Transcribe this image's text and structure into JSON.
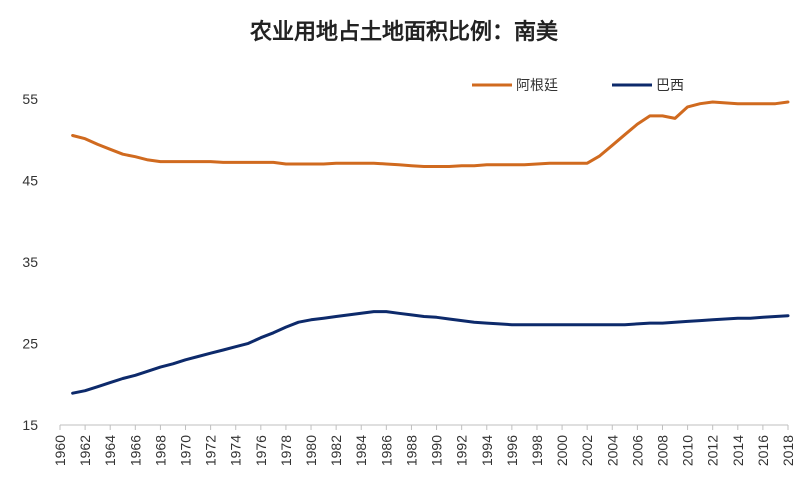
{
  "chart_data": {
    "type": "line",
    "title": "农业用地占土地面积比例：南美",
    "xlabel": "",
    "ylabel": "",
    "x": [
      1961,
      1962,
      1963,
      1964,
      1965,
      1966,
      1967,
      1968,
      1969,
      1970,
      1971,
      1972,
      1973,
      1974,
      1975,
      1976,
      1977,
      1978,
      1979,
      1980,
      1981,
      1982,
      1983,
      1984,
      1985,
      1986,
      1987,
      1988,
      1989,
      1990,
      1991,
      1992,
      1993,
      1994,
      1995,
      1996,
      1997,
      1998,
      1999,
      2000,
      2001,
      2002,
      2003,
      2004,
      2005,
      2006,
      2007,
      2008,
      2009,
      2010,
      2011,
      2012,
      2013,
      2014,
      2015,
      2016,
      2017,
      2018
    ],
    "x_tick_labels": [
      "1960",
      "1962",
      "1964",
      "1966",
      "1968",
      "1970",
      "1972",
      "1974",
      "1976",
      "1978",
      "1980",
      "1982",
      "1984",
      "1986",
      "1988",
      "1990",
      "1992",
      "1994",
      "1996",
      "1998",
      "2000",
      "2002",
      "2004",
      "2006",
      "2008",
      "2010",
      "2012",
      "2014",
      "2016",
      "2018"
    ],
    "xlim": [
      1960,
      2018
    ],
    "ylim": [
      15,
      60
    ],
    "y_ticks": [
      15,
      25,
      35,
      45,
      55
    ],
    "grid": false,
    "legend_position": "top-right",
    "series": [
      {
        "name": "阿根廷",
        "color": "#D06A1F",
        "values": [
          50.5,
          50.1,
          49.4,
          48.8,
          48.2,
          47.9,
          47.5,
          47.3,
          47.3,
          47.3,
          47.3,
          47.3,
          47.2,
          47.2,
          47.2,
          47.2,
          47.2,
          47.0,
          47.0,
          47.0,
          47.0,
          47.1,
          47.1,
          47.1,
          47.1,
          47.0,
          46.9,
          46.8,
          46.7,
          46.7,
          46.7,
          46.8,
          46.8,
          46.9,
          46.9,
          46.9,
          46.9,
          47.0,
          47.1,
          47.1,
          47.1,
          47.1,
          48.0,
          49.3,
          50.6,
          51.9,
          52.9,
          52.9,
          52.6,
          54.0,
          54.4,
          54.6,
          54.5,
          54.4,
          54.4,
          54.4,
          54.4,
          54.6
        ]
      },
      {
        "name": "巴西",
        "color": "#0D2A6B",
        "values": [
          18.9,
          19.2,
          19.7,
          20.2,
          20.7,
          21.1,
          21.6,
          22.1,
          22.5,
          23.0,
          23.4,
          23.8,
          24.2,
          24.6,
          25.0,
          25.7,
          26.3,
          27.0,
          27.6,
          27.9,
          28.1,
          28.3,
          28.5,
          28.7,
          28.9,
          28.9,
          28.7,
          28.5,
          28.3,
          28.2,
          28.0,
          27.8,
          27.6,
          27.5,
          27.4,
          27.3,
          27.3,
          27.3,
          27.3,
          27.3,
          27.3,
          27.3,
          27.3,
          27.3,
          27.3,
          27.4,
          27.5,
          27.5,
          27.6,
          27.7,
          27.8,
          27.9,
          28.0,
          28.1,
          28.1,
          28.2,
          28.3,
          28.4
        ]
      }
    ]
  }
}
